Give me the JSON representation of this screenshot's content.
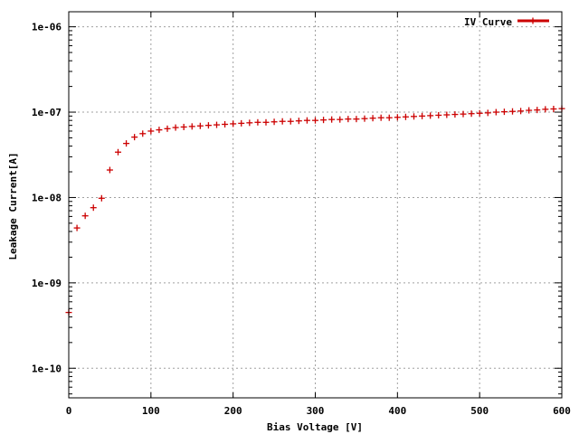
{
  "chart_data": {
    "type": "scatter",
    "title": "",
    "xlabel": "Bias Voltage [V]",
    "ylabel": "Leakage Current[A]",
    "xlim": [
      0,
      600
    ],
    "ylim": [
      4.5e-11,
      1.5e-06
    ],
    "yscale": "log",
    "grid": true,
    "legend_position": "top-right",
    "x_ticks": [
      0,
      100,
      200,
      300,
      400,
      500,
      600
    ],
    "x_tick_labels": [
      "0",
      "100",
      "200",
      "300",
      "400",
      "500",
      "600"
    ],
    "y_ticks": [
      1e-10,
      1e-09,
      1e-08,
      1e-07,
      1e-06
    ],
    "y_tick_labels": [
      "1e-10",
      "1e-09",
      "1e-08",
      "1e-07",
      "1e-06"
    ],
    "series": [
      {
        "name": "IV Curve",
        "color": "#cc0000",
        "marker": "plus",
        "x": [
          0,
          10,
          20,
          30,
          40,
          50,
          60,
          70,
          80,
          90,
          100,
          110,
          120,
          130,
          140,
          150,
          160,
          170,
          180,
          190,
          200,
          210,
          220,
          230,
          240,
          250,
          260,
          270,
          280,
          290,
          300,
          310,
          320,
          330,
          340,
          350,
          360,
          370,
          380,
          390,
          400,
          410,
          420,
          430,
          440,
          450,
          460,
          470,
          480,
          490,
          500,
          510,
          520,
          530,
          540,
          550,
          560,
          570,
          580,
          590,
          600
        ],
        "y": [
          4.5e-10,
          4.4e-09,
          6.1e-09,
          7.6e-09,
          9.8e-09,
          2.1e-08,
          3.4e-08,
          4.3e-08,
          5.1e-08,
          5.6e-08,
          6e-08,
          6.2e-08,
          6.4e-08,
          6.6e-08,
          6.7e-08,
          6.8e-08,
          6.9e-08,
          7e-08,
          7.1e-08,
          7.2e-08,
          7.3e-08,
          7.4e-08,
          7.5e-08,
          7.6e-08,
          7.6e-08,
          7.7e-08,
          7.8e-08,
          7.8e-08,
          7.9e-08,
          8e-08,
          8e-08,
          8.1e-08,
          8.2e-08,
          8.2e-08,
          8.3e-08,
          8.3e-08,
          8.4e-08,
          8.5e-08,
          8.6e-08,
          8.6e-08,
          8.7e-08,
          8.8e-08,
          8.9e-08,
          9e-08,
          9.1e-08,
          9.2e-08,
          9.3e-08,
          9.4e-08,
          9.5e-08,
          9.6e-08,
          9.7e-08,
          9.8e-08,
          1e-07,
          1.01e-07,
          1.02e-07,
          1.03e-07,
          1.05e-07,
          1.06e-07,
          1.08e-07,
          1.09e-07,
          1.1e-07
        ]
      }
    ]
  }
}
